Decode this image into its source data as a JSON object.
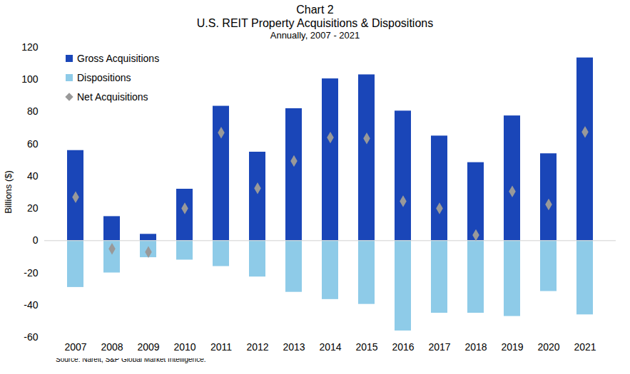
{
  "chart_data": {
    "type": "bar",
    "title": "Chart 2",
    "subtitle": [
      "U.S. REIT Property Acquisitions & Dispositions",
      "Annually, 2007 - 2021"
    ],
    "caption": "Source: Nareit, S&P Global Market Intelligence.",
    "y_label": "Billions ($)",
    "categories": [
      "2007",
      "2008",
      "2009",
      "2010",
      "2011",
      "2012",
      "2013",
      "2014",
      "2015",
      "2016",
      "2017",
      "2018",
      "2019",
      "2020",
      "2021"
    ],
    "series": [
      {
        "name": "Gross Acquisitions",
        "type": "bar",
        "color": "#1a46b8",
        "values": [
          56,
          15,
          4,
          32,
          83.5,
          55,
          82,
          100.5,
          103,
          80.5,
          65,
          48.5,
          77.5,
          54,
          113.5
        ]
      },
      {
        "name": "Dispositions",
        "type": "bar",
        "color": "#8ecbe8",
        "values": [
          -29,
          -20,
          -10.5,
          -12,
          -16,
          -22.5,
          -32,
          -36.5,
          -39.5,
          -56,
          -45,
          -45,
          -47,
          -31.5,
          -46
        ]
      },
      {
        "name": "Net Acquisitions",
        "type": "scatter",
        "marker": "diamond",
        "color": "#999999",
        "values": [
          27,
          -5,
          -7,
          20,
          67,
          32.5,
          49.5,
          64,
          63.5,
          24.5,
          20,
          3.5,
          30.5,
          22.5,
          67.5
        ]
      }
    ],
    "ylim": [
      -60,
      120
    ],
    "yticks": [
      -60,
      -40,
      -20,
      0,
      20,
      40,
      60,
      80,
      100,
      120
    ],
    "grid": false,
    "legend": "top-left"
  }
}
